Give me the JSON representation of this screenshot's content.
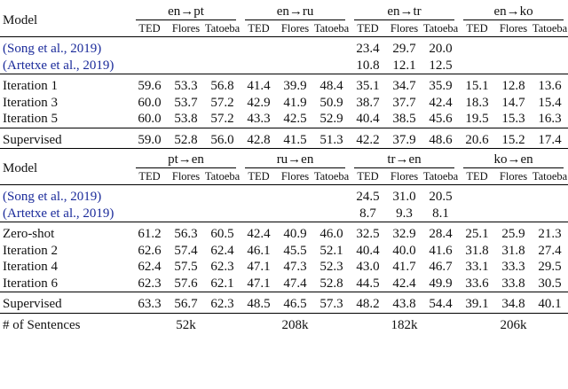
{
  "blocks": [
    {
      "header": {
        "model": "Model",
        "pairs": [
          "en→pt",
          "en→ru",
          "en→tr",
          "en→ko"
        ],
        "metrics": [
          "TED",
          "Flores",
          "Tatoeba"
        ]
      },
      "groups": [
        [
          {
            "label": "(Song et al., 2019)",
            "cells": [
              null,
              null,
              [
                "23.4",
                "29.7",
                "20.0"
              ],
              null
            ]
          },
          {
            "label": "(Artetxe et al., 2019)",
            "cells": [
              null,
              null,
              [
                "10.8",
                "12.1",
                "12.5"
              ],
              null
            ]
          }
        ],
        [
          {
            "label": "Iteration 1",
            "cells": [
              [
                "59.6",
                "53.3",
                "56.8"
              ],
              [
                "41.4",
                "39.9",
                "48.4"
              ],
              [
                "35.1",
                "34.7",
                "35.9"
              ],
              [
                "15.1",
                "12.8",
                "13.6"
              ]
            ]
          },
          {
            "label": "Iteration 3",
            "cells": [
              [
                "60.0",
                "53.7",
                "57.2"
              ],
              [
                "42.9",
                "41.9",
                "50.9"
              ],
              [
                "38.7",
                "37.7",
                "42.4"
              ],
              [
                "18.3",
                "14.7",
                "15.4"
              ]
            ]
          },
          {
            "label": "Iteration 5",
            "cells": [
              [
                "60.0",
                "53.8",
                "57.2"
              ],
              [
                "43.3",
                "42.5",
                "52.9"
              ],
              [
                "40.4",
                "38.5",
                "45.6"
              ],
              [
                "19.5",
                "15.3",
                "16.3"
              ]
            ]
          }
        ],
        [
          {
            "label": "Supervised",
            "cells": [
              [
                "59.0",
                "52.8",
                "56.0"
              ],
              [
                "42.8",
                "41.5",
                "51.3"
              ],
              [
                "42.2",
                "37.9",
                "48.6"
              ],
              [
                "20.6",
                "15.2",
                "17.4"
              ]
            ]
          }
        ]
      ]
    },
    {
      "header": {
        "model": "Model",
        "pairs": [
          "pt→en",
          "ru→en",
          "tr→en",
          "ko→en"
        ],
        "metrics": [
          "TED",
          "Flores",
          "Tatoeba"
        ]
      },
      "groups": [
        [
          {
            "label": "(Song et al., 2019)",
            "cells": [
              null,
              null,
              [
                "24.5",
                "31.0",
                "20.5"
              ],
              null
            ]
          },
          {
            "label": "(Artetxe et al., 2019)",
            "cells": [
              null,
              null,
              [
                "8.7",
                "9.3",
                "8.1"
              ],
              null
            ]
          }
        ],
        [
          {
            "label": "Zero-shot",
            "cells": [
              [
                "61.2",
                "56.3",
                "60.5"
              ],
              [
                "42.4",
                "40.9",
                "46.0"
              ],
              [
                "32.5",
                "32.9",
                "28.4"
              ],
              [
                "25.1",
                "25.9",
                "21.3"
              ]
            ]
          },
          {
            "label": "Iteration 2",
            "cells": [
              [
                "62.6",
                "57.4",
                "62.4"
              ],
              [
                "46.1",
                "45.5",
                "52.1"
              ],
              [
                "40.4",
                "40.0",
                "41.6"
              ],
              [
                "31.8",
                "31.8",
                "27.4"
              ]
            ]
          },
          {
            "label": "Iteration 4",
            "cells": [
              [
                "62.4",
                "57.5",
                "62.3"
              ],
              [
                "47.1",
                "47.3",
                "52.3"
              ],
              [
                "43.0",
                "41.7",
                "46.7"
              ],
              [
                "33.1",
                "33.3",
                "29.5"
              ]
            ]
          },
          {
            "label": "Iteration 6",
            "cells": [
              [
                "62.3",
                "57.6",
                "62.1"
              ],
              [
                "47.1",
                "47.4",
                "52.8"
              ],
              [
                "44.5",
                "42.4",
                "49.9"
              ],
              [
                "33.6",
                "33.8",
                "30.5"
              ]
            ]
          }
        ],
        [
          {
            "label": "Supervised",
            "cells": [
              [
                "63.3",
                "56.7",
                "62.3"
              ],
              [
                "48.5",
                "46.5",
                "57.3"
              ],
              [
                "48.2",
                "43.8",
                "54.4"
              ],
              [
                "39.1",
                "34.8",
                "40.1"
              ]
            ]
          }
        ]
      ]
    }
  ],
  "footer": {
    "label": "# of Sentences",
    "values": [
      "52k",
      "208k",
      "182k",
      "206k"
    ]
  }
}
